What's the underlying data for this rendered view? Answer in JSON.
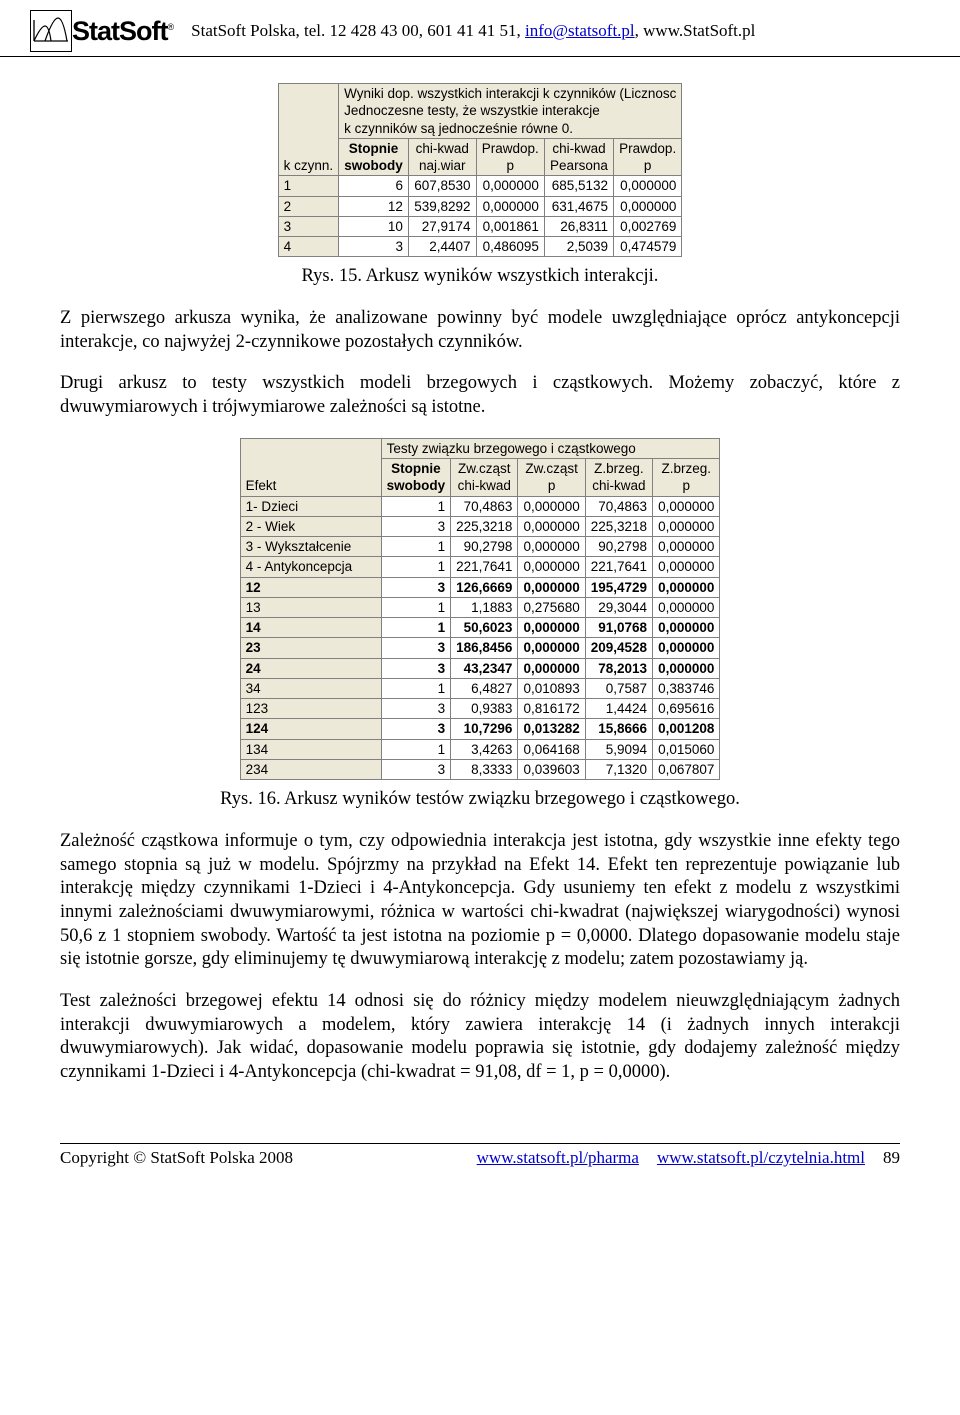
{
  "header": {
    "company_text": "StatSoft Polska, tel. 12 428 43 00, 601 41 41 51, ",
    "email": "info@statsoft.pl",
    "website_tail": ", www.StatSoft.pl",
    "logo_text": "StatSoft",
    "logo_tm": "®"
  },
  "table1": {
    "title_lines": [
      "Wyniki dop. wszystkich interakcji k czynników (Licznosc",
      "Jednoczesne testy, że wszystkie interakcje",
      "k czynników są jednocześnie równe 0."
    ],
    "columns": [
      {
        "l1": "",
        "l2": "k czynn.",
        "bold": false
      },
      {
        "l1": "Stopnie",
        "l2": "swobody",
        "bold": true
      },
      {
        "l1": "chi-kwad",
        "l2": "naj.wiar",
        "bold": false
      },
      {
        "l1": "Prawdop.",
        "l2": "p",
        "bold": false
      },
      {
        "l1": "chi-kwad",
        "l2": "Pearsona",
        "bold": false
      },
      {
        "l1": "Prawdop.",
        "l2": "p",
        "bold": false
      }
    ],
    "rows": [
      {
        "k": "1",
        "sw": "6",
        "chi1": "607,8530",
        "p1": "0,000000",
        "chi2": "685,5132",
        "p2": "0,000000"
      },
      {
        "k": "2",
        "sw": "12",
        "chi1": "539,8292",
        "p1": "0,000000",
        "chi2": "631,4675",
        "p2": "0,000000"
      },
      {
        "k": "3",
        "sw": "10",
        "chi1": "27,9174",
        "p1": "0,001861",
        "chi2": "26,8311",
        "p2": "0,002769"
      },
      {
        "k": "4",
        "sw": "3",
        "chi1": "2,4407",
        "p1": "0,486095",
        "chi2": "2,5039",
        "p2": "0,474579"
      }
    ]
  },
  "caption1": "Rys. 15. Arkusz wyników wszystkich interakcji.",
  "para1": "Z pierwszego arkusza wynika, że analizowane powinny być modele uwzględniające oprócz antykoncepcji interakcje, co najwyżej 2-czynnikowe pozostałych czynników.",
  "para2": "Drugi arkusz to testy wszystkich modeli brzegowych i cząstkowych. Możemy zobaczyć, które z dwuwymiarowych i trójwymiarowe zależności są istotne.",
  "table2": {
    "title": "Testy związku brzegowego i cząstkowego",
    "columns": [
      {
        "l1": "",
        "l2": "Efekt",
        "bold": false
      },
      {
        "l1": "Stopnie",
        "l2": "swobody",
        "bold": true
      },
      {
        "l1": "Zw.cząst",
        "l2": "chi-kwad",
        "bold": false
      },
      {
        "l1": "Zw.cząst",
        "l2": "p",
        "bold": false
      },
      {
        "l1": "Z.brzeg.",
        "l2": "chi-kwad",
        "bold": false
      },
      {
        "l1": "Z.brzeg.",
        "l2": "p",
        "bold": false
      }
    ],
    "rows": [
      {
        "efekt": "1- Dzieci",
        "sw": "1",
        "zc": "70,4863",
        "zp": "0,000000",
        "bc": "70,4863",
        "bp": "0,000000",
        "bold": false
      },
      {
        "efekt": "2 - Wiek",
        "sw": "3",
        "zc": "225,3218",
        "zp": "0,000000",
        "bc": "225,3218",
        "bp": "0,000000",
        "bold": false
      },
      {
        "efekt": "3 - Wykształcenie",
        "sw": "1",
        "zc": "90,2798",
        "zp": "0,000000",
        "bc": "90,2798",
        "bp": "0,000000",
        "bold": false
      },
      {
        "efekt": "4 - Antykoncepcja",
        "sw": "1",
        "zc": "221,7641",
        "zp": "0,000000",
        "bc": "221,7641",
        "bp": "0,000000",
        "bold": false
      },
      {
        "efekt": "12",
        "sw": "3",
        "zc": "126,6669",
        "zp": "0,000000",
        "bc": "195,4729",
        "bp": "0,000000",
        "bold": true
      },
      {
        "efekt": "13",
        "sw": "1",
        "zc": "1,1883",
        "zp": "0,275680",
        "bc": "29,3044",
        "bp": "0,000000",
        "bold": false
      },
      {
        "efekt": "14",
        "sw": "1",
        "zc": "50,6023",
        "zp": "0,000000",
        "bc": "91,0768",
        "bp": "0,000000",
        "bold": true
      },
      {
        "efekt": "23",
        "sw": "3",
        "zc": "186,8456",
        "zp": "0,000000",
        "bc": "209,4528",
        "bp": "0,000000",
        "bold": true
      },
      {
        "efekt": "24",
        "sw": "3",
        "zc": "43,2347",
        "zp": "0,000000",
        "bc": "78,2013",
        "bp": "0,000000",
        "bold": true
      },
      {
        "efekt": "34",
        "sw": "1",
        "zc": "6,4827",
        "zp": "0,010893",
        "bc": "0,7587",
        "bp": "0,383746",
        "bold": false
      },
      {
        "efekt": "123",
        "sw": "3",
        "zc": "0,9383",
        "zp": "0,816172",
        "bc": "1,4424",
        "bp": "0,695616",
        "bold": false
      },
      {
        "efekt": "124",
        "sw": "3",
        "zc": "10,7296",
        "zp": "0,013282",
        "bc": "15,8666",
        "bp": "0,001208",
        "bold": true
      },
      {
        "efekt": "134",
        "sw": "1",
        "zc": "3,4263",
        "zp": "0,064168",
        "bc": "5,9094",
        "bp": "0,015060",
        "bold": false
      },
      {
        "efekt": "234",
        "sw": "3",
        "zc": "8,3333",
        "zp": "0,039603",
        "bc": "7,1320",
        "bp": "0,067807",
        "bold": false
      }
    ]
  },
  "caption2": "Rys. 16. Arkusz wyników testów związku brzegowego i cząstkowego.",
  "para3": "Zależność cząstkowa informuje o tym, czy odpowiednia interakcja jest istotna, gdy wszystkie inne efekty tego samego stopnia są już w modelu. Spójrzmy na przykład na Efekt 14. Efekt ten reprezentuje powiązanie lub interakcję między czynnikami 1-Dzieci i 4-Antykoncepcja. Gdy usuniemy ten efekt z modelu z wszystkimi innymi zależnościami dwuwymiarowymi, różnica w wartości chi-kwadrat (największej wiarygodności) wynosi 50,6 z 1 stopniem swobody. Wartość ta jest istotna na poziomie p = 0,0000. Dlatego dopasowanie modelu staje się istotnie gorsze, gdy eliminujemy tę dwuwymiarową interakcję z modelu; zatem pozostawiamy ją.",
  "para4": "Test zależności brzegowej efektu 14 odnosi się do różnicy między modelem nieuwzględniającym żadnych interakcji dwuwymiarowych a modelem, który zawiera interakcję 14 (i żadnych innych interakcji dwuwymiarowych). Jak widać, dopasowanie modelu poprawia się istotnie, gdy dodajemy zależność między czynnikami 1-Dzieci i 4-Antykoncepcja (chi-kwadrat = 91,08, df = 1, p = 0,0000).",
  "footer": {
    "copyright": "Copyright © StatSoft Polska 2008",
    "link1": "www.statsoft.pl/pharma",
    "link2": "www.statsoft.pl/czytelnia.html",
    "page": "89"
  }
}
